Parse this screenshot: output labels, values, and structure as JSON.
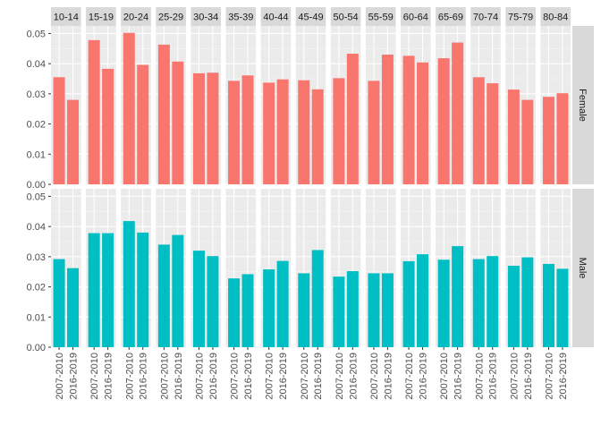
{
  "chart_data": {
    "type": "bar",
    "facet_columns": [
      "10-14",
      "15-19",
      "20-24",
      "25-29",
      "30-34",
      "35-39",
      "40-44",
      "45-49",
      "50-54",
      "55-59",
      "60-64",
      "65-69",
      "70-74",
      "75-79",
      "80-84"
    ],
    "facet_rows": [
      "Female",
      "Male"
    ],
    "categories": [
      "2007-2010",
      "2016-2019"
    ],
    "series": [
      {
        "facet": "Female",
        "color": "#F8766D",
        "values": [
          [
            0.0355,
            0.028
          ],
          [
            0.0478,
            0.0383
          ],
          [
            0.0502,
            0.0396
          ],
          [
            0.0463,
            0.0407
          ],
          [
            0.0368,
            0.037
          ],
          [
            0.0343,
            0.0361
          ],
          [
            0.0337,
            0.0348
          ],
          [
            0.0345,
            0.0315
          ],
          [
            0.0352,
            0.0433
          ],
          [
            0.0343,
            0.043
          ],
          [
            0.0426,
            0.0404
          ],
          [
            0.0418,
            0.047
          ],
          [
            0.0355,
            0.0335
          ],
          [
            0.0314,
            0.028
          ],
          [
            0.029,
            0.0302
          ]
        ]
      },
      {
        "facet": "Male",
        "color": "#00BFC4",
        "values": [
          [
            0.0292,
            0.0262
          ],
          [
            0.0378,
            0.0378
          ],
          [
            0.0418,
            0.038
          ],
          [
            0.034,
            0.0372
          ],
          [
            0.032,
            0.0302
          ],
          [
            0.0228,
            0.0242
          ],
          [
            0.0258,
            0.0286
          ],
          [
            0.0245,
            0.0322
          ],
          [
            0.0234,
            0.0252
          ],
          [
            0.0245,
            0.0245
          ],
          [
            0.0285,
            0.0308
          ],
          [
            0.029,
            0.0335
          ],
          [
            0.0292,
            0.0302
          ],
          [
            0.027,
            0.0298
          ],
          [
            0.0276,
            0.026
          ]
        ]
      }
    ],
    "y_ticks": [
      "0.00",
      "0.01",
      "0.02",
      "0.03",
      "0.04",
      "0.05"
    ],
    "ylim": [
      0,
      0.0525
    ],
    "grid": true,
    "legend": "none"
  }
}
